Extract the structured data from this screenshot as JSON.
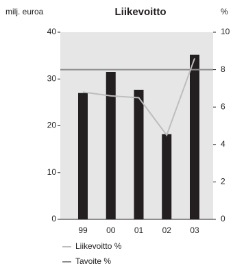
{
  "chart_data": {
    "type": "bar",
    "title": "Liikevoitto",
    "y_label": "milj. euroa",
    "y2_label": "%",
    "categories": [
      "99",
      "00",
      "01",
      "02",
      "03"
    ],
    "values": [
      27,
      31.5,
      27.7,
      18.2,
      35.2
    ],
    "color": "#231f20",
    "series": [
      {
        "name": "Liikevoitto %",
        "color": "#bdbdbd",
        "values": [
          6.8,
          6.6,
          6.5,
          4.5,
          8.6
        ],
        "axis": "y2"
      },
      {
        "name": "Tavoite %",
        "color": "#8c8c8c",
        "values": [
          8,
          8,
          8,
          8,
          8
        ],
        "axis": "y2"
      }
    ],
    "ylim": [
      0,
      40
    ],
    "yticks": [
      0,
      10,
      20,
      30,
      40
    ],
    "y2lim": [
      0,
      10
    ],
    "y2ticks": [
      0,
      2,
      4,
      6,
      8,
      10
    ]
  }
}
